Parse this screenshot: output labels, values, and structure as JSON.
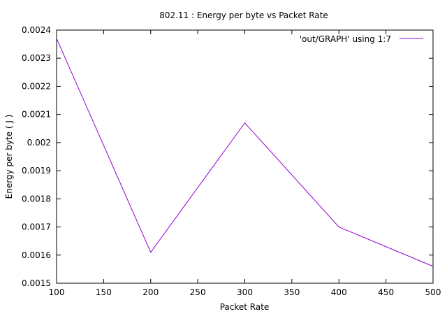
{
  "chart_data": {
    "type": "line",
    "title": "802.11 : Energy per byte vs Packet Rate",
    "xlabel": "Packet Rate",
    "ylabel": "Energy per byte ( J )",
    "xlim": [
      100,
      500
    ],
    "ylim": [
      0.0015,
      0.0024
    ],
    "x_ticks": [
      100,
      150,
      200,
      250,
      300,
      350,
      400,
      450,
      500
    ],
    "x_tick_labels": [
      "100",
      "150",
      "200",
      "250",
      "300",
      "350",
      "400",
      "450",
      "500"
    ],
    "y_ticks": [
      0.0015,
      0.0016,
      0.0017,
      0.0018,
      0.0019,
      0.002,
      0.0021,
      0.0022,
      0.0023,
      0.0024
    ],
    "y_tick_labels": [
      "0.0015",
      "0.0016",
      "0.0017",
      "0.0018",
      "0.0019",
      "0.002",
      "0.0021",
      "0.0022",
      "0.0023",
      "0.0024"
    ],
    "grid": false,
    "legend_position": "top-right",
    "series": [
      {
        "name": "'out/GRAPH' using 1:7",
        "color": "#9400d3",
        "x": [
          100,
          200,
          300,
          400,
          500
        ],
        "y": [
          0.00237,
          0.00161,
          0.00207,
          0.0017,
          0.00156
        ]
      }
    ]
  }
}
